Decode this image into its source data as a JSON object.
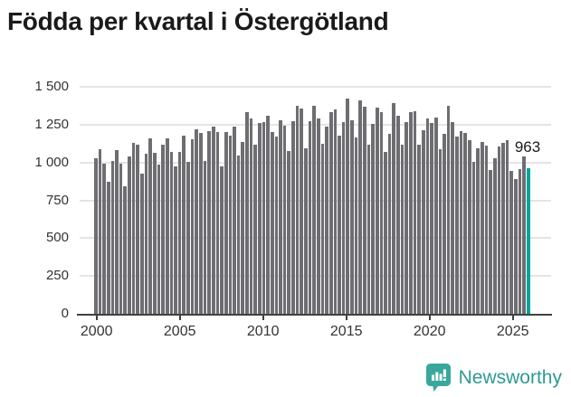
{
  "title": "Födda per kvartal i Östergötland",
  "chart_data": {
    "type": "bar",
    "title": "Födda per kvartal i Östergötland",
    "frequency": "quarterly",
    "start_period": "2000 Q1",
    "values": [
      1025,
      1085,
      995,
      875,
      1010,
      1080,
      990,
      845,
      1040,
      1130,
      1115,
      925,
      1060,
      1160,
      1065,
      985,
      1120,
      1160,
      1070,
      975,
      1070,
      1180,
      1005,
      1155,
      1220,
      1195,
      1010,
      1210,
      1235,
      1200,
      975,
      1200,
      1180,
      1235,
      1045,
      1135,
      1330,
      1290,
      1115,
      1260,
      1265,
      1310,
      1200,
      1170,
      1280,
      1245,
      1075,
      1275,
      1375,
      1355,
      1095,
      1275,
      1375,
      1290,
      1125,
      1240,
      1330,
      1350,
      1180,
      1270,
      1425,
      1280,
      1165,
      1410,
      1370,
      1120,
      1255,
      1360,
      1330,
      1070,
      1190,
      1390,
      1310,
      1115,
      1265,
      1330,
      1340,
      1115,
      1215,
      1290,
      1260,
      1295,
      1085,
      1190,
      1375,
      1265,
      1170,
      1205,
      1195,
      1150,
      1005,
      1095,
      1135,
      1110,
      950,
      1025,
      1105,
      1130,
      1150,
      945,
      890,
      955,
      1040,
      963
    ],
    "highlight_index": 103,
    "annotation": "963",
    "ylim": [
      0,
      1500
    ],
    "yticks": [
      {
        "value": 0,
        "label": "0"
      },
      {
        "value": 250,
        "label": "250"
      },
      {
        "value": 500,
        "label": "500"
      },
      {
        "value": 750,
        "label": "750"
      },
      {
        "value": 1000,
        "label": "1 000"
      },
      {
        "value": 1250,
        "label": "1 250"
      },
      {
        "value": 1500,
        "label": "1 500"
      }
    ],
    "xticks": [
      "2000",
      "2005",
      "2010",
      "2015",
      "2020",
      "2025"
    ],
    "grid": "horizontal",
    "legend": "none",
    "bar_color": "#6e6d72",
    "highlight_color": "#00a5a0"
  },
  "footer": {
    "brand": "Newsworthy",
    "brand_color": "#2e9a92",
    "icon_color": "#3aa79d"
  }
}
